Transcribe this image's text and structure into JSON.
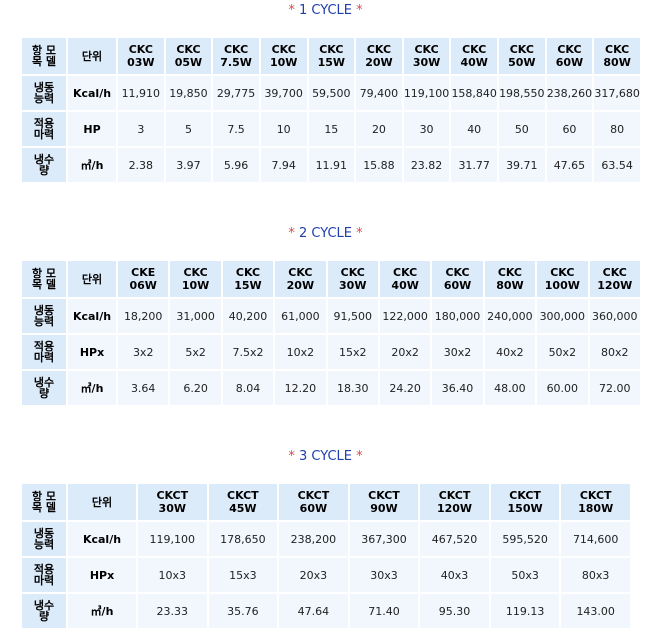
{
  "tables": [
    {
      "title": "1 CYCLE",
      "header_label": "항 모\n목 델",
      "unit_header": "단위",
      "models": [
        "CKC\n03W",
        "CKC\n05W",
        "CKC\n7.5W",
        "CKC\n10W",
        "CKC\n15W",
        "CKC\n20W",
        "CKC\n30W",
        "CKC\n40W",
        "CKC\n50W",
        "CKC\n60W",
        "CKC\n80W"
      ],
      "rows": [
        {
          "label": "냉동\n능력",
          "unit": "Kcal/h",
          "values": [
            "11,910",
            "19,850",
            "29,775",
            "39,700",
            "59,500",
            "79,400",
            "119,100",
            "158,840",
            "198,550",
            "238,260",
            "317,680"
          ]
        },
        {
          "label": "적용\n마력",
          "unit": "HP",
          "values": [
            "3",
            "5",
            "7.5",
            "10",
            "15",
            "20",
            "30",
            "40",
            "50",
            "60",
            "80"
          ]
        },
        {
          "label": "냉수\n량",
          "unit": "㎥/h",
          "values": [
            "2.38",
            "3.97",
            "5.96",
            "7.94",
            "11.91",
            "15.88",
            "23.82",
            "31.77",
            "39.71",
            "47.65",
            "63.54"
          ]
        }
      ]
    },
    {
      "title": "2 CYCLE",
      "header_label": "항 모\n목 델",
      "unit_header": "단위",
      "models": [
        "CKE\n06W",
        "CKC\n10W",
        "CKC\n15W",
        "CKC\n20W",
        "CKC\n30W",
        "CKC\n40W",
        "CKC\n60W",
        "CKC\n80W",
        "CKC\n100W",
        "CKC\n120W"
      ],
      "rows": [
        {
          "label": "냉동\n능력",
          "unit": "Kcal/h",
          "values": [
            "18,200",
            "31,000",
            "40,200",
            "61,000",
            "91,500",
            "122,000",
            "180,000",
            "240,000",
            "300,000",
            "360,000"
          ]
        },
        {
          "label": "적용\n마력",
          "unit": "HPx",
          "values": [
            "3x2",
            "5x2",
            "7.5x2",
            "10x2",
            "15x2",
            "20x2",
            "30x2",
            "40x2",
            "50x2",
            "80x2"
          ]
        },
        {
          "label": "냉수\n량",
          "unit": "㎥/h",
          "values": [
            "3.64",
            "6.20",
            "8.04",
            "12.20",
            "18.30",
            "24.20",
            "36.40",
            "48.00",
            "60.00",
            "72.00"
          ]
        }
      ]
    },
    {
      "title": "3 CYCLE",
      "header_label": "항 모\n목 델",
      "unit_header": "단위",
      "models": [
        "CKCT\n30W",
        "CKCT\n45W",
        "CKCT\n60W",
        "CKCT\n90W",
        "CKCT\n120W",
        "CKCT\n150W",
        "CKCT\n180W"
      ],
      "rows": [
        {
          "label": "냉동\n능력",
          "unit": "Kcal/h",
          "values": [
            "119,100",
            "178,650",
            "238,200",
            "367,300",
            "467,520",
            "595,520",
            "714,600"
          ]
        },
        {
          "label": "적용\n마력",
          "unit": "HPx",
          "values": [
            "10x3",
            "15x3",
            "20x3",
            "30x3",
            "40x3",
            "50x3",
            "80x3"
          ]
        },
        {
          "label": "냉수\n량",
          "unit": "㎥/h",
          "values": [
            "23.33",
            "35.76",
            "47.64",
            "71.40",
            "95.30",
            "119.13",
            "143.00"
          ]
        }
      ]
    }
  ],
  "colors": {
    "title": "#1f3fae",
    "star": "#d94a4a",
    "header_bg": "#dcebfa",
    "cell_bg": "#f1f7fd"
  }
}
